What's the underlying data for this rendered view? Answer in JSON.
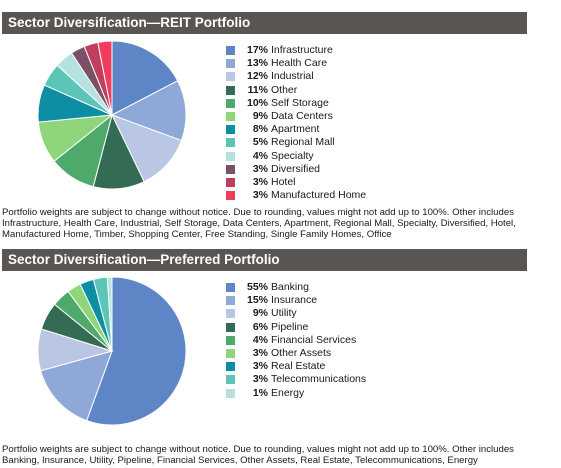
{
  "sections": [
    {
      "title": "Sector Diversification—REIT Portfolio",
      "note": "Portfolio weights are subject to change without notice. Due to rounding, values might not add up to 100%. Other includes Infrastructure, Health Care, Industrial, Self Storage, Data Centers, Apartment, Regional Mall, Specialty, Diversified, Hotel, Manufactured Home, Timber, Shopping Center, Free Standing, Single Family Homes, Office"
    },
    {
      "title": "Sector Diversification—Preferred Portfolio",
      "note": "Portfolio weights are subject to change without notice. Due to rounding, values might not add up to 100%. Other includes Banking, Insurance, Utility, Pipeline, Financial Services, Other Assets, Real Estate, Telecommunications, Energy"
    }
  ],
  "chart_data": [
    {
      "type": "pie",
      "title": "Sector Diversification—REIT Portfolio",
      "legend_position": "right",
      "slices": [
        {
          "label": "Infrastructure",
          "pct_label": "17%",
          "value": 17,
          "color": "#5e86c6"
        },
        {
          "label": "Health Care",
          "pct_label": "13%",
          "value": 13,
          "color": "#8ea8d8"
        },
        {
          "label": "Industrial",
          "pct_label": "12%",
          "value": 12,
          "color": "#b9c6e4"
        },
        {
          "label": "Other",
          "pct_label": "11%",
          "value": 11,
          "color": "#336b55"
        },
        {
          "label": "Self Storage",
          "pct_label": "10%",
          "value": 10,
          "color": "#4ea96a"
        },
        {
          "label": "Data Centers",
          "pct_label": "9%",
          "value": 9,
          "color": "#8fd57c"
        },
        {
          "label": "Apartment",
          "pct_label": "8%",
          "value": 8,
          "color": "#0d8ea3"
        },
        {
          "label": "Regional Mall",
          "pct_label": "5%",
          "value": 5,
          "color": "#5cc5b8"
        },
        {
          "label": "Specialty",
          "pct_label": "4%",
          "value": 4,
          "color": "#b5e2df"
        },
        {
          "label": "Diversified",
          "pct_label": "3%",
          "value": 3,
          "color": "#7a5166"
        },
        {
          "label": "Hotel",
          "pct_label": "3%",
          "value": 3,
          "color": "#c03e5e"
        },
        {
          "label": "Manufactured Home",
          "pct_label": "3%",
          "value": 3,
          "color": "#f03c5e"
        }
      ]
    },
    {
      "type": "pie",
      "title": "Sector Diversification—Preferred Portfolio",
      "legend_position": "right",
      "slices": [
        {
          "label": "Banking",
          "pct_label": "55%",
          "value": 55,
          "color": "#5e86c6"
        },
        {
          "label": "Insurance",
          "pct_label": "15%",
          "value": 15,
          "color": "#8ea8d8"
        },
        {
          "label": "Utility",
          "pct_label": "9%",
          "value": 9,
          "color": "#b9c6e4"
        },
        {
          "label": "Pipeline",
          "pct_label": "6%",
          "value": 6,
          "color": "#336b55"
        },
        {
          "label": "Financial Services",
          "pct_label": "4%",
          "value": 4,
          "color": "#4ea96a"
        },
        {
          "label": "Other Assets",
          "pct_label": "3%",
          "value": 3,
          "color": "#8fd57c"
        },
        {
          "label": "Real Estate",
          "pct_label": "3%",
          "value": 3,
          "color": "#0d8ea3"
        },
        {
          "label": "Telecommunications",
          "pct_label": "3%",
          "value": 3,
          "color": "#5cc5b8"
        },
        {
          "label": "Energy",
          "pct_label": "1%",
          "value": 1,
          "color": "#b5e2df"
        }
      ]
    }
  ]
}
